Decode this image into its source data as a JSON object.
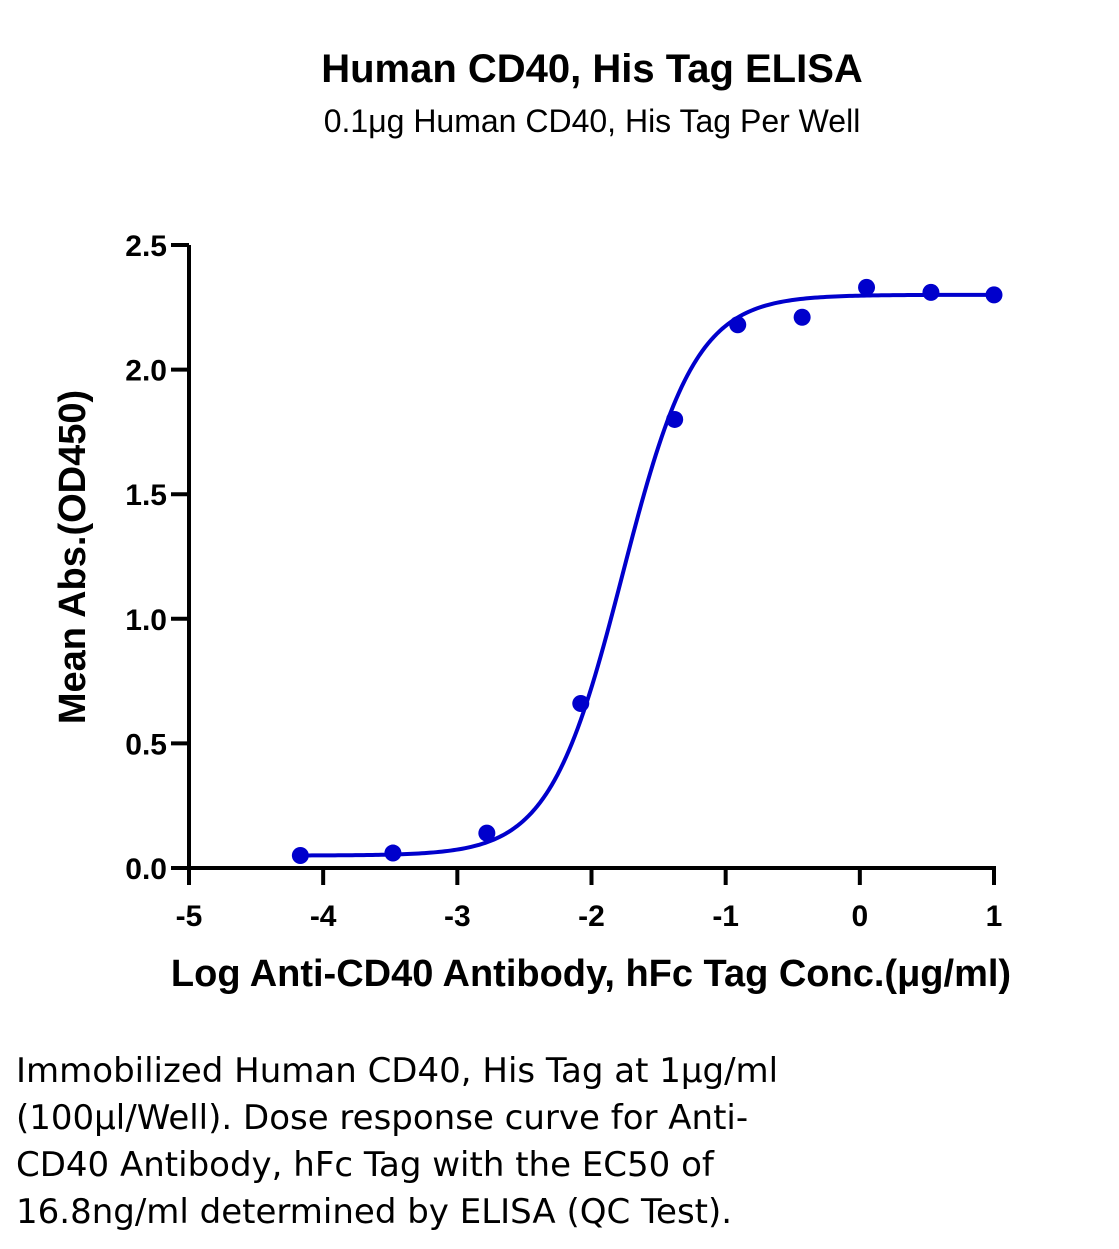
{
  "chart_data": {
    "type": "scatter",
    "title": "Human CD40, His Tag ELISA",
    "subtitle": "0.1μg Human CD40, His Tag Per Well",
    "xlabel": "Log Anti-CD40 Antibody, hFc Tag Conc.(μg/ml)",
    "ylabel": "Mean Abs.(OD450)",
    "xlim": [
      -5,
      1
    ],
    "ylim": [
      0,
      2.5
    ],
    "xticks": [
      "-5",
      "-4",
      "-3",
      "-2",
      "-1",
      "0",
      "1"
    ],
    "yticks": [
      "0.0",
      "0.5",
      "1.0",
      "1.5",
      "2.0",
      "2.5"
    ],
    "grid": false,
    "series": [
      {
        "x": [
          -4.17,
          -3.48,
          -2.78,
          -2.08,
          -1.38,
          -0.91,
          -0.43,
          0.05,
          0.53,
          1.0
        ],
        "y": [
          0.05,
          0.06,
          0.14,
          0.66,
          1.8,
          2.18,
          2.21,
          2.33,
          2.31,
          2.3
        ]
      }
    ],
    "fit_curve": {
      "model": "four-parameter logistic",
      "bottom": 0.05,
      "top": 2.3,
      "log_ec50": -1.77,
      "hill_slope": 1.6
    },
    "color": "#0000CC"
  },
  "caption": {
    "lines": [
      "Immobilized Human CD40, His Tag at 1μg/ml",
      "(100μl/Well). Dose response curve for Anti-",
      "CD40 Antibody, hFc Tag with the EC50 of",
      "16.8ng/ml determined by ELISA (QC Test)."
    ]
  }
}
